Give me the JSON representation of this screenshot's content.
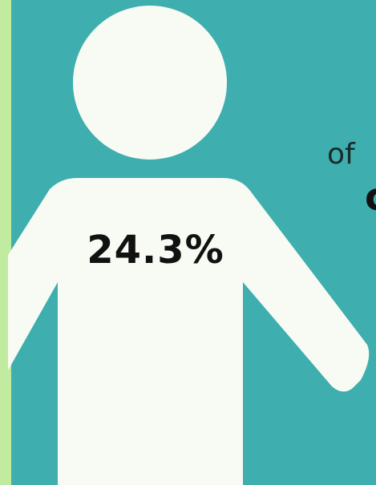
{
  "stat": {
    "value": "24.3%"
  },
  "caption": {
    "line1": "of",
    "line2": "c"
  },
  "colors": {
    "background": "#3eaeae",
    "stripe": "#c1eb9f",
    "figure": "#f7fbf3",
    "text": "#111111"
  },
  "icons": {
    "figure": "person-icon"
  }
}
